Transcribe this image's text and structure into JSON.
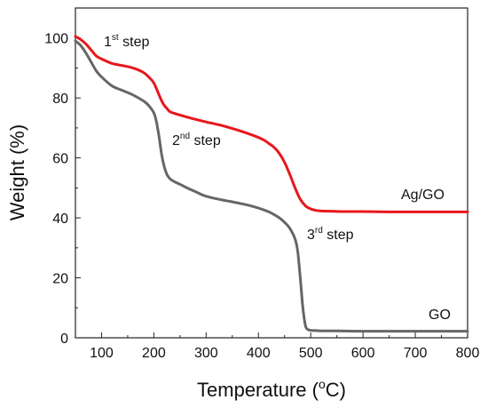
{
  "chart_data": {
    "type": "line",
    "xlabel": "Temperature (°C)",
    "xlabel_main": "Temperature (",
    "xlabel_unit_sup": "o",
    "xlabel_unit_tail": "C)",
    "ylabel": "Weight (%)",
    "xlim": [
      50,
      800
    ],
    "ylim": [
      0,
      110
    ],
    "xticks": [
      100,
      200,
      300,
      400,
      500,
      600,
      700,
      800
    ],
    "yticks": [
      0,
      20,
      40,
      60,
      80,
      100
    ],
    "grid": false,
    "series": [
      {
        "name": "Ag/GO",
        "color": "#e8161b",
        "x": [
          50,
          60,
          70,
          80,
          90,
          100,
          120,
          140,
          160,
          180,
          190,
          200,
          210,
          215,
          220,
          225,
          230,
          240,
          250,
          270,
          300,
          330,
          360,
          390,
          410,
          420,
          430,
          440,
          450,
          460,
          470,
          480,
          490,
          500,
          510,
          520,
          540,
          560,
          600,
          650,
          700,
          750,
          800
        ],
        "y": [
          100.5,
          99.5,
          98,
          96,
          94,
          93,
          91.5,
          90.8,
          90,
          88.5,
          87,
          85,
          81,
          79,
          77.5,
          76.5,
          75.5,
          74.8,
          74.3,
          73.3,
          72,
          70.8,
          69.3,
          67.5,
          66,
          64.8,
          63.5,
          61.5,
          58.5,
          54.5,
          50,
          46.2,
          44,
          43,
          42.5,
          42.3,
          42.2,
          42.1,
          42.1,
          42,
          42,
          42,
          42
        ]
      },
      {
        "name": "GO",
        "color": "#666666",
        "x": [
          50,
          60,
          70,
          80,
          90,
          100,
          120,
          140,
          160,
          180,
          190,
          200,
          205,
          210,
          215,
          220,
          225,
          230,
          235,
          240,
          250,
          260,
          280,
          300,
          330,
          360,
          390,
          420,
          440,
          450,
          460,
          470,
          475,
          480,
          485,
          490,
          495,
          500,
          505,
          510,
          520,
          550,
          600,
          700,
          800
        ],
        "y": [
          99,
          97.5,
          95,
          92,
          89,
          87,
          84,
          82.5,
          81,
          79,
          77.5,
          75,
          72,
          67,
          61,
          57,
          54.5,
          53.2,
          52.5,
          52,
          51.2,
          50.3,
          48.7,
          47.2,
          46,
          45,
          43.8,
          42,
          40,
          38.5,
          36.5,
          33,
          29,
          20,
          10,
          4,
          2.7,
          2.5,
          2.4,
          2.4,
          2.3,
          2.3,
          2.2,
          2.2,
          2.2
        ]
      }
    ],
    "labels": {
      "ag_go": "Ag/GO",
      "go": "GO",
      "step1_num": "1",
      "step1_sup": "st",
      "step1_tail": " step",
      "step2_num": "2",
      "step2_sup": "nd",
      "step2_tail": " step",
      "step3_num": "3",
      "step3_sup": "rd",
      "step3_tail": " step"
    }
  }
}
